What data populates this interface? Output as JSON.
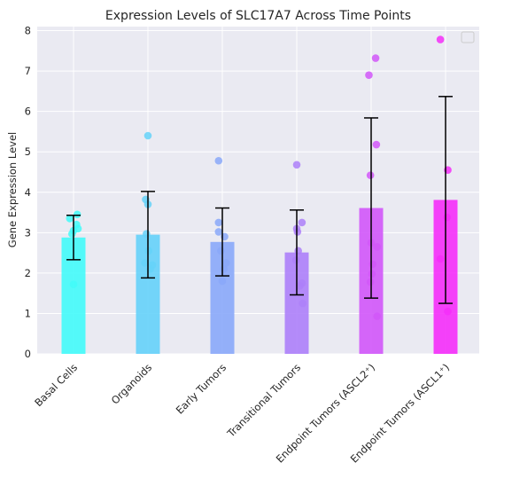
{
  "chart_data": {
    "type": "bar",
    "title": "Expression Levels of SLC17A7 Across Time Points",
    "xlabel": "",
    "ylabel": "Gene Expression Level",
    "ylim": [
      0,
      8.1
    ],
    "yticks": [
      0,
      1,
      2,
      3,
      4,
      5,
      6,
      7,
      8
    ],
    "grid": true,
    "legend": {
      "placement": "top-right",
      "entries": []
    },
    "categories": [
      "Basal Cells",
      "Organoids",
      "Early Tumors",
      "Transitional Tumors",
      "Endpoint Tumors (ASCL2⁺)",
      "Endpoint Tumors (ASCL1⁺)"
    ],
    "colors": [
      "#42fbf9",
      "#65d2f9",
      "#8aa8f9",
      "#ad80f9",
      "#d157f9",
      "#f52ef9"
    ],
    "values": [
      2.88,
      2.95,
      2.77,
      2.51,
      3.61,
      3.81
    ],
    "error": [
      0.55,
      1.07,
      0.84,
      1.05,
      2.23,
      2.56
    ],
    "points": [
      [
        {
          "dx": -0.05,
          "y": 3.35
        },
        {
          "dx": 0.05,
          "y": 3.45
        },
        {
          "dx": 0.0,
          "y": 3.05
        },
        {
          "dx": 0.06,
          "y": 3.1
        },
        {
          "dx": -0.02,
          "y": 2.97
        },
        {
          "dx": 0.04,
          "y": 3.2
        },
        {
          "dx": 0.0,
          "y": 1.72
        }
      ],
      [
        {
          "dx": 0.0,
          "y": 5.4
        },
        {
          "dx": -0.03,
          "y": 3.82
        },
        {
          "dx": 0.0,
          "y": 3.7
        },
        {
          "dx": -0.02,
          "y": 2.97
        },
        {
          "dx": 0.01,
          "y": 2.55
        },
        {
          "dx": 0.06,
          "y": 2.2
        },
        {
          "dx": -0.04,
          "y": 2.25
        },
        {
          "dx": 0.03,
          "y": 2.1
        }
      ],
      [
        {
          "dx": -0.05,
          "y": 4.78
        },
        {
          "dx": -0.05,
          "y": 3.25
        },
        {
          "dx": -0.05,
          "y": 3.02
        },
        {
          "dx": 0.03,
          "y": 2.9
        },
        {
          "dx": -0.02,
          "y": 2.55
        },
        {
          "dx": 0.05,
          "y": 2.25
        },
        {
          "dx": 0.02,
          "y": 2.1
        },
        {
          "dx": 0.0,
          "y": 1.8
        }
      ],
      [
        {
          "dx": 0.0,
          "y": 4.68
        },
        {
          "dx": 0.07,
          "y": 3.25
        },
        {
          "dx": 0.0,
          "y": 3.1
        },
        {
          "dx": 0.01,
          "y": 3.02
        },
        {
          "dx": 0.02,
          "y": 2.55
        },
        {
          "dx": -0.01,
          "y": 2.32
        },
        {
          "dx": 0.07,
          "y": 1.75
        },
        {
          "dx": 0.04,
          "y": 1.68
        },
        {
          "dx": 0.08,
          "y": 1.25
        }
      ],
      [
        {
          "dx": 0.06,
          "y": 7.32
        },
        {
          "dx": -0.03,
          "y": 6.9
        },
        {
          "dx": 0.07,
          "y": 5.18
        },
        {
          "dx": -0.01,
          "y": 4.42
        },
        {
          "dx": 0.0,
          "y": 2.75
        },
        {
          "dx": 0.08,
          "y": 2.65
        },
        {
          "dx": 0.02,
          "y": 2.22
        },
        {
          "dx": 0.01,
          "y": 1.98
        },
        {
          "dx": -0.01,
          "y": 1.78
        },
        {
          "dx": 0.08,
          "y": 0.93
        }
      ],
      [
        {
          "dx": -0.07,
          "y": 7.78
        },
        {
          "dx": 0.03,
          "y": 4.55
        },
        {
          "dx": 0.02,
          "y": 3.38
        },
        {
          "dx": -0.07,
          "y": 2.35
        },
        {
          "dx": 0.03,
          "y": 1.05
        }
      ]
    ]
  }
}
